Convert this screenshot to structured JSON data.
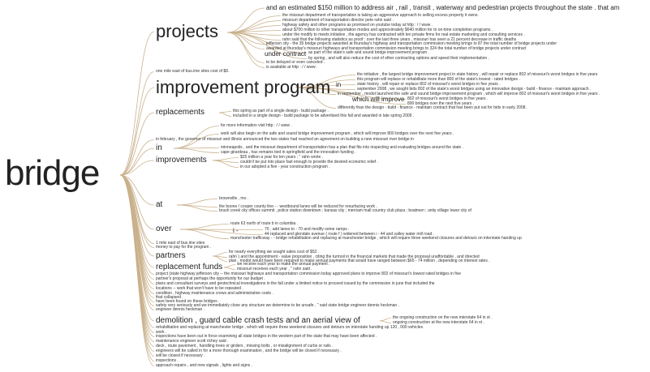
{
  "root": "bridge",
  "branches": [
    {
      "label": "projects",
      "children": [
        "and an estimated $150 million to address air , rail , transit , waterway and pedestrian projects throughout the state . that am",
        "the missouri department of transportation is taking an aggressive approach to selling excess property it owns.",
        "missouri department of transportation director pete rahn said .",
        "highway safety and other programs as promised on youtube today at http : / / www .",
        "about $700 million to other transportation modes and approximately $640 million for to on-time completion programs .",
        "under the modify to meets initiative , the agency has contracted with ten private firms for real estate marketing and consulting services .",
        "rahn said that the following statistics as proof : over the last three years , missouri has seen a 21 percent decrease in traffic deaths",
        "jefferson city - the 35 bridge projects awarded at thursday's highway and transportation commission meeting brings to 87 the total number of bridge projects under",
        "awarded at thursday's missouri highways and transportation commission meeting brings to 324 the total number of bridge projects under contract",
        "as part of the state's safe and sound bridge improvement program .",
        "by spring , and will also reduce the cost of other contracting options and speed their implementation .",
        "to be delayed or even canceled .",
        "is available at http : / / www ."
      ]
    },
    {
      "label": "improvement program",
      "children": [
        "one mile east of bus.ime sites cost of $8.",
        "the initiative , the largest bridge improvement project in state history , will repair or replace 802 of missouri's worst bridges in five years",
        "this program will replace or rehabilitate more than 800 of the state's lowest - rated bridges .",
        "state history , will repair or replace 802 of missouri's worst bridges in five years .",
        "september 2008 , we sought bids 802 of the state's worst bridges using an innovative design - build - finance - maintain approach .",
        "in september , modot launched the safe and sound bridge improvement program , which will improve 802 of missouri's worst bridges in five years .",
        "802 of missouri's worst bridges in five years .",
        "800 bridges over the next five years .",
        "differently than the design - build - finance - maintain contract that has been put out for bids in early 2008."
      ]
    },
    {
      "label": "replacements",
      "children": [
        "this spring as part of a single design - build package .",
        "included in a single design - build package to be advertised this fall and awarded in late spring 2009 ."
      ]
    },
    {
      "label": "in",
      "children": [
        "for more information visit http : / / www .",
        "work will also begin on the safe and sound bridge improvement program , which will improve 800 bridges over the next five years .",
        "in february , the governor of missouri and illinois announced the two states had reached an agreement on building a new missouri river bridge in",
        "minneapolis , and the missouri department of transportation has a plan that fits into inspecting and evaluating bridges around the state .",
        "cape girardeau , has remains tied in springfield and the innovation funding ."
      ]
    },
    {
      "label": "improvements",
      "children": [
        "$25 million a year for ten years ; \" rahn wrote .",
        "couldn't be put into place fast enough to provide the desired economic relief .",
        "in our adopted a five - year construction program ."
      ]
    },
    {
      "label": "at",
      "children": [
        "brownville , mo .",
        "the boone / cooper county line - - westbound lanes will be reduced for resurfacing work .",
        "brush creek city offices summit , police station downtown ; kansas city ; merriam mall country club plaza ; boatmen ; unity village lower city of"
      ]
    },
    {
      "label": "over",
      "children": [
        "route 63 north of route b in columbia .",
        "70 , add lanes to - 70 and modify some ramps .",
        "44 replaced and glendale avenue ( route f ) widened between i - 44 and valley water mill road .",
        "manchester trafficway - - bridge rehabilitation and replacing at manchester bridge , which will require three weekend closures and detours on interstate handing up"
      ]
    },
    {
      "label": "partners",
      "children": [
        "for nearly everything we sought sales cost of $52 .",
        "rahn ) and the appointment - value proposition , citing the turmoil in the financial markets that made the proposal unaffordable , and directed",
        "plan , modot would have been required to make annual payments that would have ranged between $65 - 74 million , depending on interest rates ."
      ]
    },
    {
      "label": "replacement funds",
      "children": [
        "we receive each year to make the annual payment .",
        "missouri receives each year , \" rahn said ."
      ]
    },
    {
      "label": "demolition , guard cable crash tests and an aerial view of",
      "children": [
        "the ongoing construction on the new interstate 64 in st .",
        "ongoing construction at the new interstate 64 in st .",
        "rehabilitation and replacing at manchester bridge , which will require three weekend closures and detours on interstate handing up 120 , 000 vehicles"
      ]
    }
  ],
  "leaves": [
    "1 mile east of bus.ime sites",
    "money to pay for the program .",
    "project (state highway jefferson city -- the missouri highways and transportation commission today approved plans to improve 802 of missouri's lowest rated bridges in five",
    "partner's proposal at perhaps the opportunity for our budget .",
    "plans and consultant surveys and geotechnical investigations in the fall under a limited notice to proceed issued by the commission in june that included the",
    "locations -- work that won't have to be repeated .",
    "condition , highway maintenance crews and administrative costs .",
    "that collapsed .",
    "have been found on these bridges .",
    "safety very seriously and we immediately close any structure we determine to be unsafe , \" said state bridge engineer dennis heckman .",
    "engineer dennis heckman .",
    "work .",
    "inspections have been out in force examining all state bridges in the western part of the state that may have been affected .",
    "maintenance engineer scott richey said .",
    "deck , route pavement , handling trees or girders , missing bolts , or misalignment of curbs or rails .",
    "engineers will be called in for a more thorough examination , and the bridge will be closed if necessary .",
    "will be closed if necessary .",
    "inspections .",
    "approach repairs , and new signals , lights and signs ."
  ]
}
